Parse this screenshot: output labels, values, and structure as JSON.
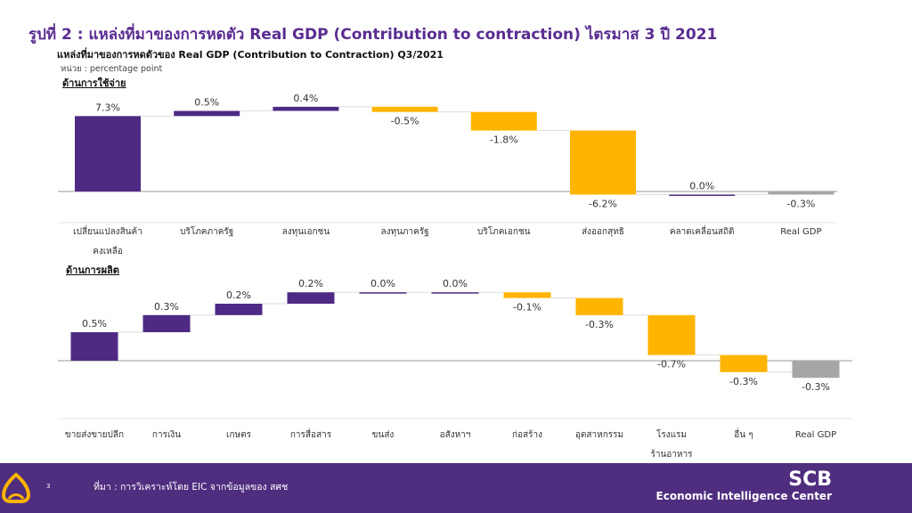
{
  "header": {
    "title": "รูปที่ 2 : แหล่งที่มาของการหดตัว Real GDP (Contribution to contraction) ไตรมาส 3 ปี 2021",
    "subtitle": "แหล่งที่มาของการหดตัวของ Real GDP (Contribution to Contraction) Q3/2021",
    "unit": "หน่วย : percentage point"
  },
  "colors": {
    "positive": "#4e2a84",
    "negative": "#ffb400",
    "total": "#a6a6a6",
    "footer": "#4f2d7f",
    "title": "#5a2d91"
  },
  "chart_data": [
    {
      "type": "bar",
      "subtype": "waterfall",
      "section_label": "ด้านการใช้จ่าย",
      "categories": [
        "เปลี่ยนแปลงสินค้า\nคงเหลือ",
        "บริโภคภาครัฐ",
        "ลงทุนเอกชน",
        "ลงทุนภาครัฐ",
        "บริโภคเอกชน",
        "ส่งออกสุทธิ",
        "คลาดเคลื่อนสถิติ",
        "Real GDP"
      ],
      "values": [
        7.3,
        0.5,
        0.4,
        -0.5,
        -1.8,
        -6.2,
        0.0,
        -0.3
      ],
      "labels": [
        "7.3%",
        "0.5%",
        "0.4%",
        "-0.5%",
        "-1.8%",
        "-6.2%",
        "0.0%",
        "-0.3%"
      ],
      "total_last": true
    },
    {
      "type": "bar",
      "subtype": "waterfall",
      "section_label": "ด้านการผลิต",
      "categories": [
        "ขายส่งขายปลีก",
        "การเงิน",
        "เกษตร",
        "การสื่อสาร",
        "ขนส่ง",
        "อสังหาฯ",
        "ก่อสร้าง",
        "อุตสาหกรรม",
        "โรงแรม\nร้านอาหาร",
        "อื่น ๆ",
        "Real GDP"
      ],
      "values": [
        0.5,
        0.3,
        0.2,
        0.2,
        0.0,
        0.0,
        -0.1,
        -0.3,
        -0.7,
        -0.3,
        -0.3
      ],
      "labels": [
        "0.5%",
        "0.3%",
        "0.2%",
        "0.2%",
        "0.0%",
        "0.0%",
        "-0.1%",
        "-0.3%",
        "-0.7%",
        "-0.3%",
        "-0.3%"
      ],
      "total_last": true
    }
  ],
  "footer": {
    "page": "3",
    "source": "ที่มา : การวิเคราะห์โดย EIC จากข้อมูลของ สศช",
    "logo_top": "SCB",
    "logo_bottom": "Economic Intelligence Center"
  }
}
